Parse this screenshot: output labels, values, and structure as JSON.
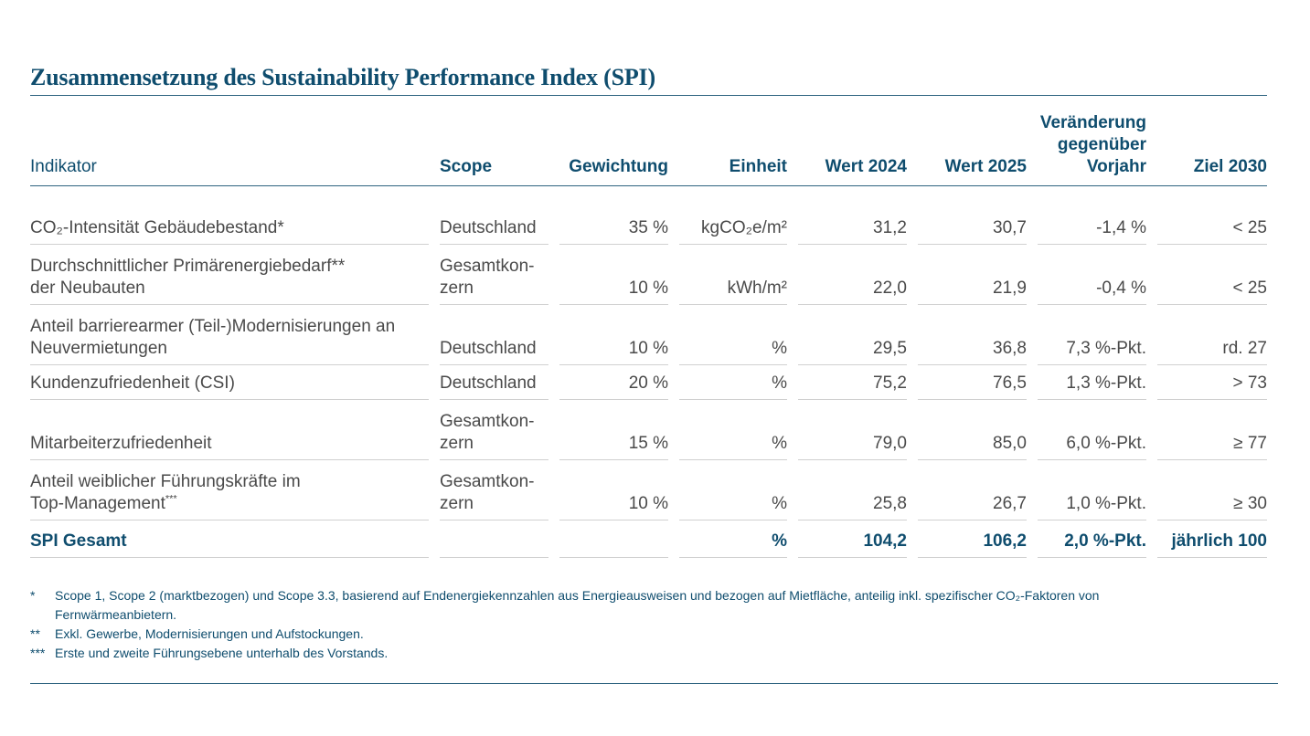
{
  "title": "Zusammensetzung des Sustainability Performance Index (SPI)",
  "headers": {
    "indikator": "Indikator",
    "scope": "Scope",
    "gewichtung": "Gewichtung",
    "einheit": "Einheit",
    "wert2024": "Wert 2024",
    "wert2025": "Wert 2025",
    "veraenderung_l1": "Veränderung",
    "veraenderung_l2": "gegenüber",
    "veraenderung_l3": "Vorjahr",
    "ziel2030": "Ziel 2030"
  },
  "rows": [
    {
      "ind_l1": "CO₂-Intensität Gebäudebestand*",
      "ind_l2": "",
      "scope_l1": "Deutschland",
      "scope_l2": "",
      "gew": "35 %",
      "einheit": "kgCO₂e/m²",
      "w2024": "31,2",
      "w2025": "30,7",
      "ver": "-1,4 %",
      "ziel": "< 25"
    },
    {
      "ind_l1": "Durchschnittlicher Primärenergiebedarf**",
      "ind_l2": "der Neubauten",
      "scope_l1": "Gesamtkon-",
      "scope_l2": "zern",
      "gew": "10 %",
      "einheit": "kWh/m²",
      "w2024": "22,0",
      "w2025": "21,9",
      "ver": "-0,4 %",
      "ziel": "< 25"
    },
    {
      "ind_l1": "Anteil barrierearmer (Teil-)Modernisierungen an",
      "ind_l2": "Neuvermietungen",
      "scope_l1": "",
      "scope_l2": "Deutschland",
      "gew": "10 %",
      "einheit": "%",
      "w2024": "29,5",
      "w2025": "36,8",
      "ver": "7,3 %-Pkt.",
      "ziel": "rd. 27"
    },
    {
      "ind_l1": "Kundenzufriedenheit (CSI)",
      "ind_l2": "",
      "scope_l1": "Deutschland",
      "scope_l2": "",
      "gew": "20 %",
      "einheit": "%",
      "w2024": "75,2",
      "w2025": "76,5",
      "ver": "1,3 %-Pkt.",
      "ziel": "> 73"
    },
    {
      "ind_l1": "",
      "ind_l2": "Mitarbeiterzufriedenheit",
      "scope_l1": "Gesamtkon-",
      "scope_l2": "zern",
      "gew": "15 %",
      "einheit": "%",
      "w2024": "79,0",
      "w2025": "85,0",
      "ver": "6,0 %-Pkt.",
      "ziel": "≥ 77"
    },
    {
      "ind_l1": "Anteil weiblicher Führungskräfte im",
      "ind_l2": "Top-Management",
      "ind_sup": "***",
      "scope_l1": "Gesamtkon-",
      "scope_l2": "zern",
      "gew": "10 %",
      "einheit": "%",
      "w2024": "25,8",
      "w2025": "26,7",
      "ver": "1,0 %-Pkt.",
      "ziel": "≥ 30"
    }
  ],
  "total": {
    "label": "SPI Gesamt",
    "einheit": "%",
    "w2024": "104,2",
    "w2025": "106,2",
    "ver": "2,0 %-Pkt.",
    "ziel": "jährlich 100"
  },
  "footnotes": [
    {
      "mark": "*",
      "text": "Scope 1, Scope 2 (marktbezogen) und Scope 3.3, basierend auf Endenergiekennzahlen aus Energieausweisen und bezogen auf Mietfläche, anteilig inkl. spezifischer CO₂-Faktoren von Fernwärmeanbietern."
    },
    {
      "mark": "**",
      "text": "Exkl. Gewerbe, Modernisierungen und Aufstockungen."
    },
    {
      "mark": "***",
      "text": "Erste und zweite Führungsebene unterhalb des Vorstands."
    }
  ]
}
